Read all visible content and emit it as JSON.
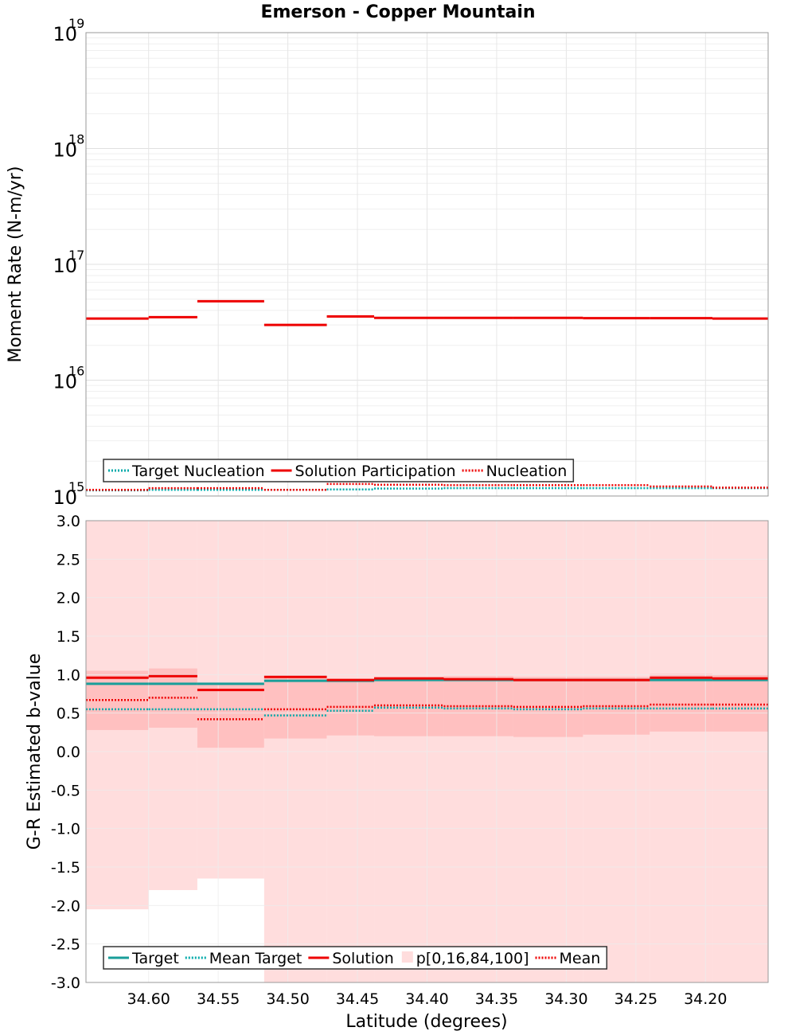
{
  "chart_data": {
    "title": "Emerson - Copper Mountain",
    "xlabel": "Latitude (degrees)",
    "x_axis": {
      "min": 34.155,
      "max": 34.645,
      "reversed": true,
      "ticks": [
        34.6,
        34.55,
        34.5,
        34.45,
        34.4,
        34.35,
        34.3,
        34.25,
        34.2
      ],
      "tick_labels": [
        "34.60",
        "34.55",
        "34.50",
        "34.45",
        "34.40",
        "34.35",
        "34.30",
        "34.25",
        "34.20"
      ]
    },
    "segments": [
      [
        34.645,
        34.6
      ],
      [
        34.6,
        34.565
      ],
      [
        34.565,
        34.517
      ],
      [
        34.517,
        34.472
      ],
      [
        34.472,
        34.438
      ],
      [
        34.438,
        34.388
      ],
      [
        34.388,
        34.338
      ],
      [
        34.338,
        34.288
      ],
      [
        34.288,
        34.24
      ],
      [
        34.24,
        34.195
      ],
      [
        34.195,
        34.155
      ]
    ],
    "panels": [
      {
        "id": "moment",
        "type": "line",
        "ylabel": "Moment Rate (N-m/yr)",
        "yscale": "log",
        "ylim": [
          1000000000000000.0,
          1e+19
        ],
        "y_ticks": [
          {
            "value": 1e+19,
            "base": "10",
            "exp": "19"
          },
          {
            "value": 1e+18,
            "base": "10",
            "exp": "18"
          },
          {
            "value": 1e+17,
            "base": "10",
            "exp": "17"
          },
          {
            "value": 1e+16,
            "base": "10",
            "exp": "16"
          },
          {
            "value": 1000000000000000.0,
            "base": "10",
            "exp": "15"
          }
        ],
        "legend": [
          {
            "label": "Target Nucleation",
            "style": "dotted",
            "color": "#00aaaa"
          },
          {
            "label": "Solution Participation",
            "style": "solid",
            "color": "#ee0000"
          },
          {
            "label": "Nucleation",
            "style": "dotted",
            "color": "#ee0000"
          }
        ],
        "series": [
          {
            "name": "Target Nucleation",
            "style": "dotted",
            "color": "#00aaaa",
            "values": [
              1120000000000000.0,
              1130000000000000.0,
              1130000000000000.0,
              1130000000000000.0,
              1140000000000000.0,
              1160000000000000.0,
              1170000000000000.0,
              1170000000000000.0,
              1170000000000000.0,
              1170000000000000.0,
              1170000000000000.0
            ]
          },
          {
            "name": "Solution Participation",
            "style": "solid",
            "color": "#ee0000",
            "values": [
              3.4e+16,
              3.5e+16,
              4.8e+16,
              3e+16,
              3.55e+16,
              3.45e+16,
              3.45e+16,
              3.45e+16,
              3.43e+16,
              3.43e+16,
              3.4e+16
            ]
          },
          {
            "name": "Nucleation",
            "style": "dotted",
            "color": "#ee0000",
            "values": [
              1130000000000000.0,
              1170000000000000.0,
              1170000000000000.0,
              1130000000000000.0,
              1270000000000000.0,
              1250000000000000.0,
              1240000000000000.0,
              1240000000000000.0,
              1240000000000000.0,
              1210000000000000.0,
              1180000000000000.0
            ]
          }
        ]
      },
      {
        "id": "bvalue",
        "type": "line",
        "ylabel": "G-R Estimated b-value",
        "yscale": "linear",
        "ylim": [
          -3.0,
          3.0
        ],
        "y_ticks": [
          3.0,
          2.5,
          2.0,
          1.5,
          1.0,
          0.5,
          0.0,
          -0.5,
          -1.0,
          -1.5,
          -2.0,
          -2.5,
          -3.0
        ],
        "y_tick_labels": [
          "3.0",
          "2.5",
          "2.0",
          "1.5",
          "1.0",
          "0.5",
          "0.0",
          "-0.5",
          "-1.0",
          "-1.5",
          "-2.0",
          "-2.5",
          "-3.0"
        ],
        "legend": [
          {
            "label": "Target",
            "style": "solid",
            "color": "#199e99"
          },
          {
            "label": "Mean Target",
            "style": "dotted",
            "color": "#00aaaa"
          },
          {
            "label": "Solution",
            "style": "solid",
            "color": "#ee0000"
          },
          {
            "label": "p[0,16,84,100]",
            "style": "box",
            "color": "#ffdddd"
          },
          {
            "label": "Mean",
            "style": "dotted",
            "color": "#ee0000"
          }
        ],
        "bands": {
          "p0": [
            -2.05,
            -1.8,
            -1.65,
            -3.0,
            -3.0,
            -3.0,
            -3.0,
            -3.0,
            -3.0,
            -3.0,
            -3.0
          ],
          "p100": [
            3.0,
            3.0,
            3.0,
            3.0,
            3.0,
            3.0,
            3.0,
            3.0,
            3.0,
            3.0,
            3.0
          ],
          "p16": [
            0.28,
            0.31,
            0.05,
            0.17,
            0.21,
            0.2,
            0.2,
            0.19,
            0.22,
            0.26,
            0.26
          ],
          "p84": [
            1.05,
            1.08,
            0.88,
            0.97,
            0.94,
            0.96,
            0.98,
            0.97,
            0.97,
            1.01,
            1.0
          ],
          "outer_color": "#ffdddd",
          "inner_color": "#ffc0c0"
        },
        "series": [
          {
            "name": "Target",
            "style": "solid",
            "color": "#199e99",
            "values": [
              0.88,
              0.88,
              0.88,
              0.92,
              0.92,
              0.93,
              0.93,
              0.93,
              0.93,
              0.93,
              0.93
            ]
          },
          {
            "name": "Mean Target",
            "style": "dotted",
            "color": "#00aaaa",
            "values": [
              0.55,
              0.55,
              0.55,
              0.47,
              0.53,
              0.57,
              0.56,
              0.55,
              0.56,
              0.56,
              0.56
            ]
          },
          {
            "name": "Solution",
            "style": "solid",
            "color": "#ee0000",
            "values": [
              0.96,
              0.98,
              0.8,
              0.97,
              0.93,
              0.95,
              0.94,
              0.93,
              0.93,
              0.96,
              0.95
            ]
          },
          {
            "name": "Mean",
            "style": "dotted",
            "color": "#ee0000",
            "values": [
              0.67,
              0.7,
              0.42,
              0.55,
              0.58,
              0.6,
              0.59,
              0.58,
              0.59,
              0.61,
              0.61
            ]
          }
        ]
      }
    ]
  }
}
